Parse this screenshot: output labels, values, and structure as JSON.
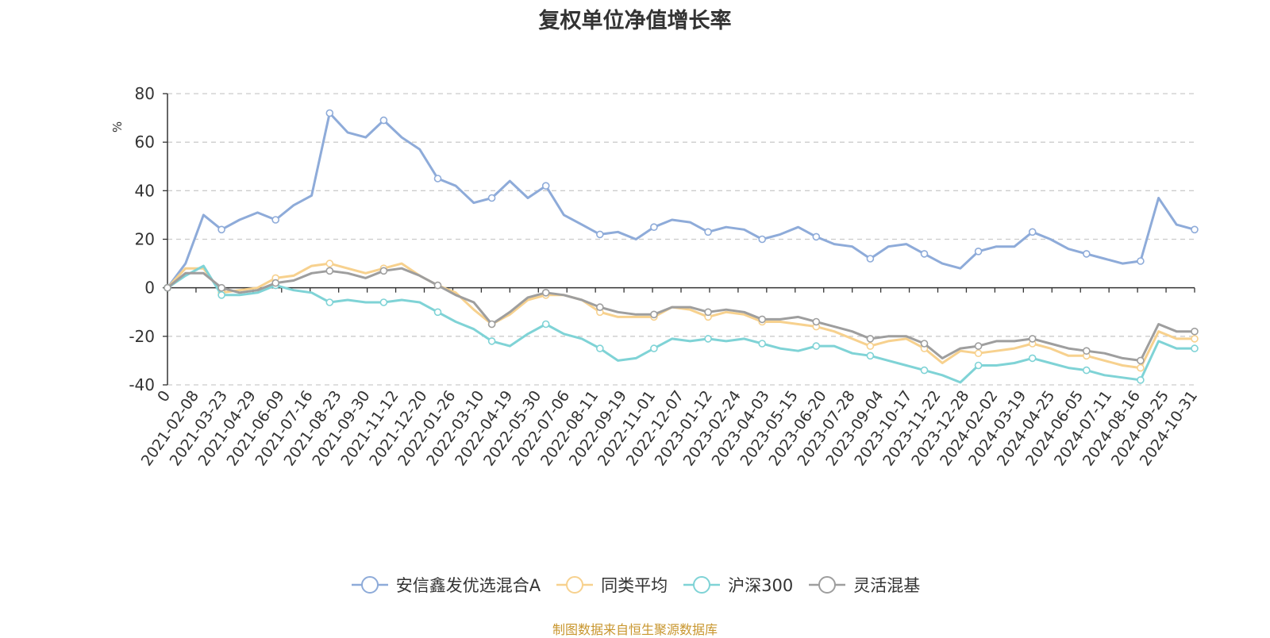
{
  "chart_data": {
    "type": "line",
    "title": "复权单位净值增长率",
    "ylabel": "%",
    "ylim": [
      -40,
      80
    ],
    "yticks": [
      80,
      60,
      40,
      20,
      0,
      -20,
      -40
    ],
    "grid": true,
    "legend_position": "bottom",
    "x_tick_labels": [
      "0",
      "2021-02-08",
      "2021-03-23",
      "2021-04-29",
      "2021-06-09",
      "2021-07-16",
      "2021-08-23",
      "2021-09-30",
      "2021-11-12",
      "2021-12-20",
      "2022-01-26",
      "2022-03-10",
      "2022-04-19",
      "2022-05-30",
      "2022-07-06",
      "2022-08-11",
      "2022-09-19",
      "2022-11-01",
      "2022-12-07",
      "2023-01-12",
      "2023-02-24",
      "2023-04-03",
      "2023-05-15",
      "2023-06-20",
      "2023-07-28",
      "2023-09-04",
      "2023-10-17",
      "2023-11-22",
      "2023-12-28",
      "2024-02-02",
      "2024-03-19",
      "2024-04-25",
      "2024-06-05",
      "2024-07-11",
      "2024-08-16",
      "2024-09-25",
      "2024-10-31"
    ],
    "series": [
      {
        "name": "安信鑫发优选混合A",
        "color": "#8eabd9",
        "values": [
          0,
          10,
          30,
          24,
          28,
          31,
          28,
          34,
          38,
          72,
          64,
          62,
          69,
          62,
          57,
          45,
          42,
          35,
          37,
          44,
          37,
          42,
          30,
          26,
          22,
          23,
          20,
          25,
          28,
          27,
          23,
          25,
          24,
          20,
          22,
          25,
          21,
          18,
          17,
          12,
          17,
          18,
          14,
          10,
          8,
          15,
          17,
          17,
          23,
          20,
          16,
          14,
          12,
          10,
          11,
          37,
          26,
          24
        ]
      },
      {
        "name": "同类平均",
        "color": "#f7d18e",
        "values": [
          0,
          8,
          8,
          -2,
          -1,
          0,
          4,
          5,
          9,
          10,
          8,
          6,
          8,
          10,
          5,
          1,
          -2,
          -9,
          -15,
          -11,
          -5,
          -3,
          -3,
          -5,
          -10,
          -12,
          -12,
          -12,
          -8,
          -9,
          -12,
          -10,
          -11,
          -14,
          -14,
          -15,
          -16,
          -18,
          -21,
          -24,
          -22,
          -21,
          -25,
          -31,
          -26,
          -27,
          -26,
          -25,
          -23,
          -25,
          -28,
          -28,
          -30,
          -32,
          -33,
          -18,
          -21,
          -21
        ]
      },
      {
        "name": "沪深300",
        "color": "#7fd3d6",
        "values": [
          0,
          5,
          9,
          -3,
          -3,
          -2,
          1,
          -1,
          -2,
          -6,
          -5,
          -6,
          -6,
          -5,
          -6,
          -10,
          -14,
          -17,
          -22,
          -24,
          -19,
          -15,
          -19,
          -21,
          -25,
          -30,
          -29,
          -25,
          -21,
          -22,
          -21,
          -22,
          -21,
          -23,
          -25,
          -26,
          -24,
          -24,
          -27,
          -28,
          -30,
          -32,
          -34,
          -36,
          -39,
          -32,
          -32,
          -31,
          -29,
          -31,
          -33,
          -34,
          -36,
          -37,
          -38,
          -22,
          -25,
          -25
        ]
      },
      {
        "name": "灵活混基",
        "color": "#9e9e9e",
        "values": [
          0,
          6,
          6,
          0,
          -2,
          -1,
          2,
          3,
          6,
          7,
          6,
          4,
          7,
          8,
          5,
          1,
          -3,
          -6,
          -15,
          -10,
          -4,
          -2,
          -3,
          -5,
          -8,
          -10,
          -11,
          -11,
          -8,
          -8,
          -10,
          -9,
          -10,
          -13,
          -13,
          -12,
          -14,
          -16,
          -18,
          -21,
          -20,
          -20,
          -23,
          -29,
          -25,
          -24,
          -22,
          -22,
          -21,
          -23,
          -25,
          -26,
          -27,
          -29,
          -30,
          -15,
          -18,
          -18
        ]
      }
    ]
  },
  "footer": {
    "source": "制图数据来自恒生聚源数据库"
  }
}
